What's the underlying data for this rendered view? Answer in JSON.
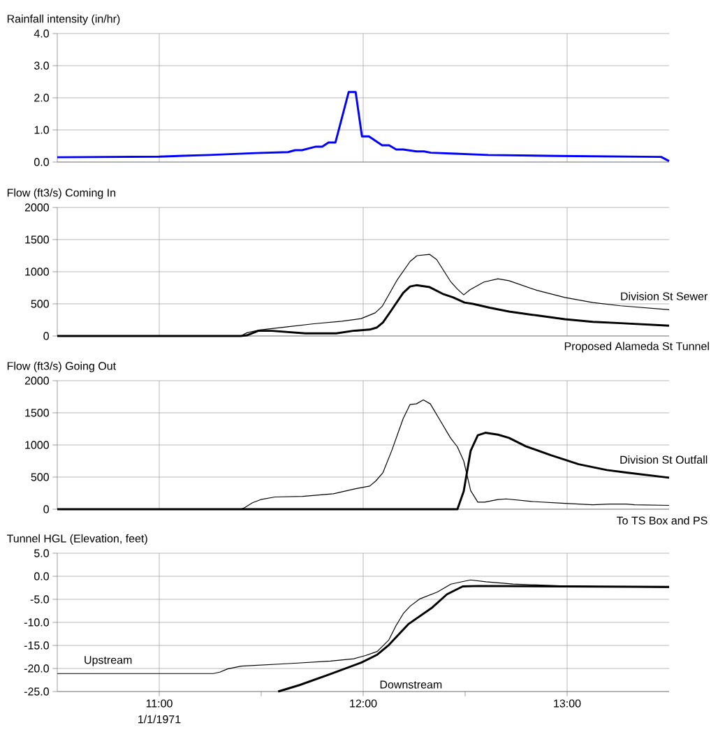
{
  "chart_data": [
    {
      "type": "line",
      "ylabel": "Rainfall intensity (in/hr)",
      "xlim": [
        10.5,
        13.5
      ],
      "ylim": [
        0,
        4
      ],
      "tick_labels": "y",
      "grid": true,
      "xticks": [
        {
          "value": 11,
          "label": null
        },
        {
          "value": 12,
          "label": null
        },
        {
          "value": 13,
          "label": null
        }
      ],
      "yticks": [
        {
          "value": 0,
          "label": "0.0"
        },
        {
          "value": 1,
          "label": "1.0"
        },
        {
          "value": 2,
          "label": "2.0"
        },
        {
          "value": 3,
          "label": "3.0"
        },
        {
          "value": 4,
          "label": "4.0"
        }
      ],
      "series": [
        {
          "color": "#0000ff",
          "x": [
            10.5,
            11.0,
            11.245,
            11.474,
            11.632,
            11.666,
            11.7,
            11.768,
            11.799,
            11.83,
            11.864,
            11.929,
            11.963,
            11.994,
            12.028,
            12.093,
            12.127,
            12.162,
            12.196,
            12.261,
            12.298,
            12.332,
            12.452,
            12.613,
            12.955,
            13.461,
            13.5
          ],
          "values": [
            0.15,
            0.17,
            0.22,
            0.28,
            0.31,
            0.37,
            0.37,
            0.48,
            0.48,
            0.61,
            0.61,
            2.18,
            2.18,
            0.8,
            0.8,
            0.52,
            0.52,
            0.39,
            0.39,
            0.33,
            0.33,
            0.29,
            0.26,
            0.22,
            0.19,
            0.16,
            0.03
          ]
        }
      ]
    },
    {
      "type": "line",
      "ylabel": "Flow (ft3/s) Coming In",
      "xlim": [
        10.5,
        13.5
      ],
      "ylim": [
        0,
        2000
      ],
      "tick_labels": "y",
      "grid": true,
      "xticks": [
        {
          "value": 11,
          "label": null
        },
        {
          "value": 12,
          "label": null
        },
        {
          "value": 13,
          "label": null
        }
      ],
      "yticks": [
        0,
        500,
        1000,
        1500,
        2000
      ],
      "series": [
        {
          "name": "Division St Sewer",
          "color": "#000000",
          "x": [
            10.5,
            11.4,
            11.43,
            11.485,
            11.621,
            11.758,
            11.895,
            11.99,
            12.059,
            12.093,
            12.168,
            12.23,
            12.264,
            12.326,
            12.36,
            12.428,
            12.462,
            12.493,
            12.524,
            12.592,
            12.661,
            12.715,
            12.852,
            12.989,
            13.126,
            13.262,
            13.5
          ],
          "values": [
            0,
            0,
            50,
            90,
            140,
            190,
            230,
            270,
            360,
            460,
            880,
            1160,
            1250,
            1270,
            1190,
            850,
            730,
            640,
            720,
            840,
            890,
            860,
            710,
            600,
            520,
            470,
            410
          ]
        },
        {
          "name": "Proposed Alameda St Tunnel",
          "color": "#000000",
          "x": [
            10.5,
            11.4,
            11.43,
            11.485,
            11.553,
            11.717,
            11.868,
            11.95,
            12.032,
            12.066,
            12.097,
            12.134,
            12.196,
            12.23,
            12.261,
            12.326,
            12.394,
            12.442,
            12.497,
            12.538,
            12.62,
            12.715,
            12.852,
            12.989,
            13.126,
            13.262,
            13.5
          ],
          "values": [
            0,
            0,
            10,
            80,
            80,
            40,
            40,
            80,
            100,
            130,
            210,
            380,
            670,
            770,
            790,
            760,
            650,
            600,
            520,
            500,
            440,
            380,
            320,
            260,
            220,
            200,
            160
          ]
        }
      ]
    },
    {
      "type": "line",
      "ylabel": "Flow (ft3/s) Going Out",
      "xlim": [
        10.5,
        13.5
      ],
      "ylim": [
        0,
        2000
      ],
      "tick_labels": "y",
      "grid": true,
      "xticks": [
        {
          "value": 11,
          "label": null
        },
        {
          "value": 12,
          "label": null
        },
        {
          "value": 13,
          "label": null
        }
      ],
      "yticks": [
        0,
        500,
        1000,
        1500,
        2000
      ],
      "series": [
        {
          "name": "To TS Box and PS",
          "color": "#000000",
          "x": [
            10.5,
            11.4,
            11.416,
            11.457,
            11.498,
            11.567,
            11.703,
            11.854,
            11.963,
            12.032,
            12.062,
            12.097,
            12.141,
            12.196,
            12.23,
            12.261,
            12.295,
            12.329,
            12.374,
            12.428,
            12.462,
            12.493,
            12.527,
            12.562,
            12.596,
            12.661,
            12.702,
            12.825,
            12.989,
            13.126,
            13.208,
            13.29,
            13.331,
            13.5
          ],
          "values": [
            0,
            0,
            20,
            100,
            150,
            190,
            200,
            240,
            320,
            360,
            440,
            570,
            920,
            1410,
            1630,
            1640,
            1700,
            1640,
            1400,
            1110,
            970,
            750,
            290,
            110,
            110,
            150,
            160,
            120,
            90,
            70,
            80,
            80,
            70,
            60
          ]
        },
        {
          "name": "Division St Outfall",
          "color": "#000000",
          "x": [
            10.5,
            12.462,
            12.493,
            12.527,
            12.562,
            12.599,
            12.661,
            12.715,
            12.797,
            12.92,
            13.057,
            13.194,
            13.29,
            13.5
          ],
          "values": [
            0,
            0,
            280,
            910,
            1150,
            1190,
            1160,
            1110,
            980,
            840,
            700,
            610,
            570,
            490
          ]
        }
      ]
    },
    {
      "type": "line",
      "ylabel": "Tunnel HGL (Elevation, feet)",
      "xlim": [
        10.5,
        13.5
      ],
      "ylim": [
        -25,
        5
      ],
      "grid": true,
      "xticks": [
        {
          "value": 11,
          "label": "11:00"
        },
        {
          "value": 11.5,
          "label": null
        },
        {
          "value": 12,
          "label": "12:00"
        },
        {
          "value": 12.5,
          "label": null
        },
        {
          "value": 13,
          "label": "13:00"
        }
      ],
      "yticks": [
        {
          "value": -25,
          "label": "-25.0"
        },
        {
          "value": -20,
          "label": "-20.0"
        },
        {
          "value": -15,
          "label": "-15.0"
        },
        {
          "value": -10,
          "label": "-10.0"
        },
        {
          "value": -5,
          "label": "-5.0"
        },
        {
          "value": 0,
          "label": "0.0"
        },
        {
          "value": 5,
          "label": "5.0"
        }
      ],
      "annotations": [
        "1/1/1971"
      ],
      "series": [
        {
          "name": "Upstream",
          "color": "#000000",
          "x": [
            10.5,
            11.265,
            11.297,
            11.335,
            11.402,
            11.65,
            11.84,
            11.954,
            12.011,
            12.069,
            12.126,
            12.16,
            12.198,
            12.23,
            12.278,
            12.364,
            12.43,
            12.526,
            12.602,
            12.735,
            12.983,
            13.269,
            13.5
          ],
          "values": [
            -21.1,
            -21.1,
            -20.8,
            -20.1,
            -19.5,
            -18.9,
            -18.4,
            -17.9,
            -17.2,
            -16.3,
            -13.8,
            -10.8,
            -8.0,
            -6.5,
            -4.9,
            -3.4,
            -1.7,
            -0.8,
            -1.2,
            -1.7,
            -2.1,
            -2.3,
            -2.4
          ]
        },
        {
          "name": "Downstream",
          "color": "#000000",
          "x": [
            11.583,
            11.688,
            11.84,
            11.992,
            12.069,
            12.126,
            12.221,
            12.335,
            12.411,
            12.488,
            12.564,
            12.983,
            13.5
          ],
          "values": [
            -25,
            -23.6,
            -21.2,
            -18.7,
            -17.0,
            -14.9,
            -10.4,
            -6.9,
            -3.9,
            -2.2,
            -2.1,
            -2.2,
            -2.3
          ]
        }
      ]
    }
  ]
}
